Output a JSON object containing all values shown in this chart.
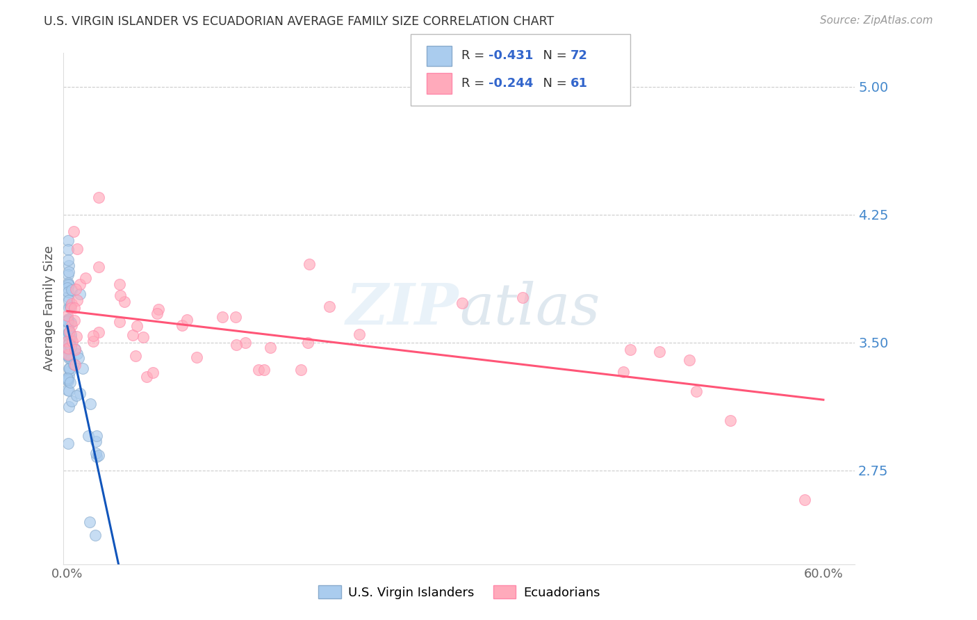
{
  "title": "U.S. VIRGIN ISLANDER VS ECUADORIAN AVERAGE FAMILY SIZE CORRELATION CHART",
  "source": "Source: ZipAtlas.com",
  "ylabel": "Average Family Size",
  "yticks": [
    2.75,
    3.5,
    4.25,
    5.0
  ],
  "ymin": 2.2,
  "ymax": 5.2,
  "xmin": -0.003,
  "xmax": 0.625,
  "legend_r1_text": "R =  -0.431   N = ",
  "legend_r1_n": "72",
  "legend_r2_text": "R =  -0.244   N = ",
  "legend_r2_n": "61",
  "watermark": "ZIPatlas",
  "blue_color": "#AACCEE",
  "blue_edge": "#88AACC",
  "pink_color": "#FFAABB",
  "pink_edge": "#FF88AA",
  "trendline_blue_solid": "#1155BB",
  "trendline_blue_dash": "#99BBDD",
  "trendline_pink": "#FF5577",
  "title_color": "#333333",
  "source_color": "#999999",
  "ytick_color": "#4488CC",
  "xtick_color": "#666666",
  "grid_color": "#CCCCCC",
  "ylabel_color": "#555555",
  "legend_text_color": "#333333",
  "legend_n_color": "#3366CC"
}
